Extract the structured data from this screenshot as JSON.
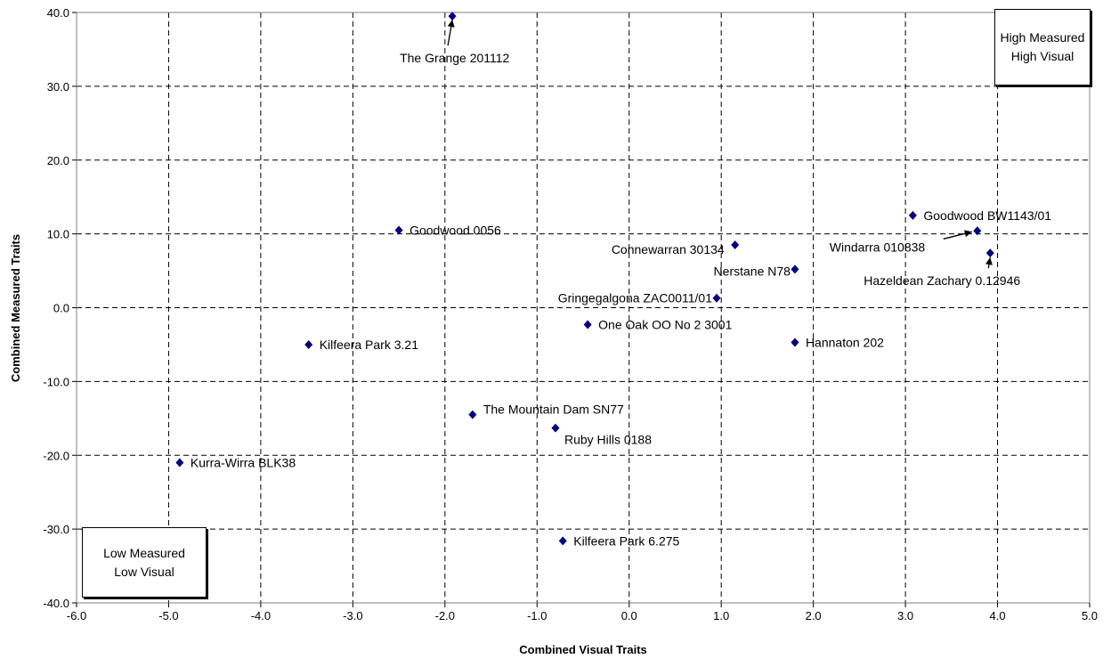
{
  "chart_data": {
    "type": "scatter",
    "xlabel": "Combined Visual Traits",
    "ylabel": "Combined Measured Traits",
    "xlim": [
      -6.0,
      5.0
    ],
    "ylim": [
      -40.0,
      40.0
    ],
    "x_ticks": [
      "-6.0",
      "-5.0",
      "-4.0",
      "-3.0",
      "-2.0",
      "-1.0",
      "0.0",
      "1.0",
      "2.0",
      "3.0",
      "4.0",
      "5.0"
    ],
    "y_ticks": [
      "40.0",
      "30.0",
      "20.0",
      "10.0",
      "0.0",
      "-10.0",
      "-20.0",
      "-30.0",
      "-40.0"
    ],
    "grid": true,
    "marker_color": "#000080",
    "points": [
      {
        "label": "The Grange 201112",
        "x": -1.92,
        "y": 39.5
      },
      {
        "label": "Goodwood 0056",
        "x": -2.5,
        "y": 10.5
      },
      {
        "label": "Connewarran 30134",
        "x": 1.15,
        "y": 8.5
      },
      {
        "label": "Nerstane N78",
        "x": 1.8,
        "y": 5.2
      },
      {
        "label": "Gringegalgona ZAC0011/01",
        "x": 0.95,
        "y": 1.3
      },
      {
        "label": "One Oak OO No 2 3001",
        "x": -0.45,
        "y": -2.3
      },
      {
        "label": "Kilfeera Park 3.21",
        "x": -3.48,
        "y": -5.0
      },
      {
        "label": "Hannaton 202",
        "x": 1.8,
        "y": -4.7
      },
      {
        "label": "Goodwood BW1143/01",
        "x": 3.08,
        "y": 12.5
      },
      {
        "label": "Windarra 010838",
        "x": 3.78,
        "y": 10.4
      },
      {
        "label": "Hazeldean Zachary 0.12946",
        "x": 3.92,
        "y": 7.4
      },
      {
        "label": "The Mountain Dam SN77",
        "x": -1.7,
        "y": -14.5
      },
      {
        "label": "Ruby Hills 0188",
        "x": -0.8,
        "y": -16.3
      },
      {
        "label": "Kurra-Wirra BLK38",
        "x": -4.88,
        "y": -21.0
      },
      {
        "label": "Kilfeera Park 6.275",
        "x": -0.72,
        "y": -31.6
      }
    ]
  },
  "annotations": {
    "top_right": [
      "High Measured",
      "High Visual"
    ],
    "bottom_left": [
      "Low Measured",
      "Low Visual"
    ]
  }
}
